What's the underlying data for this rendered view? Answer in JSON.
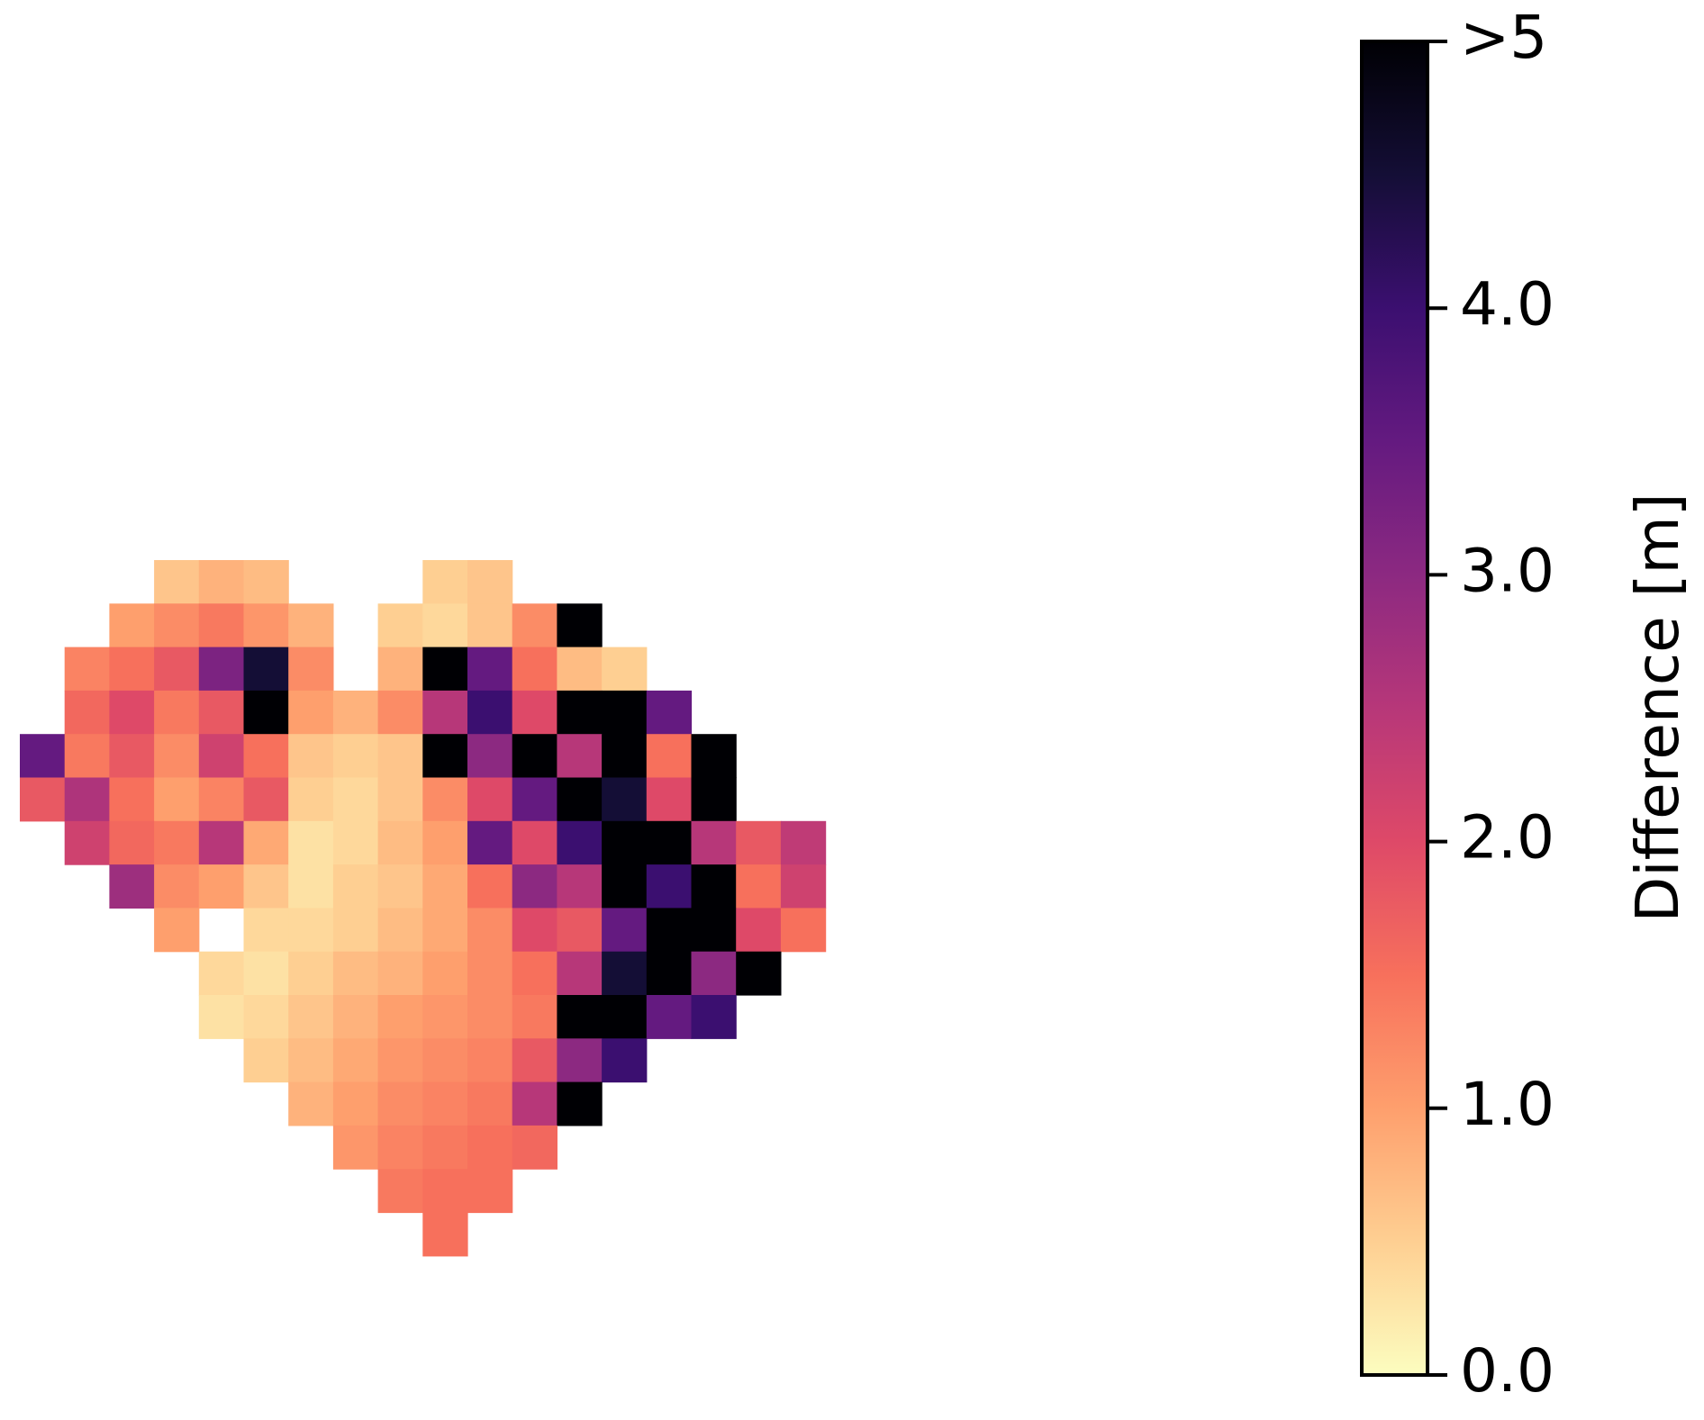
{
  "chart_data": {
    "type": "heatmap",
    "colormap": [
      "#fcfdbf",
      "#fecf92",
      "#fe9f6d",
      "#f7705c",
      "#de4968",
      "#b73779",
      "#8c2981",
      "#641a80",
      "#3b0f70",
      "#140e36",
      "#000004"
    ],
    "clim": [
      0,
      5
    ],
    "colorbar_label": "Difference [m]",
    "colorbar_ticks": [
      {
        "value": 0,
        "label": "0.0"
      },
      {
        "value": 1,
        "label": "1.0"
      },
      {
        "value": 2,
        "label": "2.0"
      },
      {
        "value": 3,
        "label": "3.0"
      },
      {
        "value": 4,
        "label": "4.0"
      },
      {
        "value": 5,
        "label": ">5"
      }
    ],
    "z": [
      [
        null,
        null,
        null,
        0.6,
        0.8,
        0.7,
        null,
        null,
        null,
        0.5,
        0.6,
        null,
        null,
        null,
        null,
        null,
        null,
        null
      ],
      [
        null,
        null,
        1.0,
        1.2,
        1.4,
        1.1,
        0.8,
        null,
        0.5,
        0.4,
        0.6,
        1.2,
        5,
        null,
        null,
        null,
        null,
        null
      ],
      [
        null,
        1.3,
        1.5,
        1.8,
        3.2,
        4.5,
        1.2,
        null,
        0.8,
        5,
        3.5,
        1.5,
        0.7,
        0.5,
        null,
        null,
        null,
        null
      ],
      [
        null,
        1.6,
        2.0,
        1.4,
        1.8,
        5,
        1.0,
        0.8,
        1.2,
        2.5,
        4.0,
        2.0,
        5,
        5,
        3.5,
        null,
        null,
        null
      ],
      [
        3.5,
        1.4,
        1.8,
        1.2,
        2.2,
        1.5,
        0.6,
        0.5,
        0.6,
        5,
        3.0,
        5,
        2.5,
        5,
        1.5,
        5,
        null,
        null
      ],
      [
        1.8,
        2.6,
        1.5,
        1.0,
        1.3,
        1.8,
        0.5,
        0.4,
        0.6,
        1.2,
        2.0,
        3.5,
        5,
        4.5,
        2.0,
        5,
        null,
        null
      ],
      [
        null,
        2.2,
        1.6,
        1.4,
        2.5,
        0.9,
        0.3,
        0.4,
        0.7,
        1.0,
        3.5,
        2.0,
        4.0,
        5,
        5,
        2.5,
        1.8,
        2.4
      ],
      [
        null,
        null,
        2.8,
        1.2,
        1.0,
        0.6,
        0.3,
        0.5,
        0.6,
        0.9,
        1.5,
        3.0,
        2.5,
        5,
        4.0,
        5,
        1.5,
        2.2
      ],
      [
        null,
        null,
        null,
        1.0,
        null,
        0.4,
        0.4,
        0.5,
        0.7,
        0.9,
        1.2,
        2.0,
        1.8,
        3.5,
        5,
        5,
        2.0,
        1.5
      ],
      [
        null,
        null,
        null,
        null,
        0.4,
        0.3,
        0.5,
        0.7,
        0.8,
        1.0,
        1.2,
        1.5,
        2.5,
        4.5,
        5,
        3.0,
        5,
        null
      ],
      [
        null,
        null,
        null,
        null,
        0.3,
        0.4,
        0.6,
        0.8,
        1.0,
        1.1,
        1.2,
        1.4,
        5,
        5,
        3.5,
        4.0,
        null,
        null
      ],
      [
        null,
        null,
        null,
        null,
        null,
        0.5,
        0.7,
        0.9,
        1.1,
        1.2,
        1.3,
        1.8,
        3.0,
        4.0,
        null,
        null,
        null,
        null
      ],
      [
        null,
        null,
        null,
        null,
        null,
        null,
        0.8,
        1.0,
        1.2,
        1.3,
        1.4,
        2.5,
        5,
        null,
        null,
        null,
        null,
        null
      ],
      [
        null,
        null,
        null,
        null,
        null,
        null,
        null,
        1.1,
        1.3,
        1.4,
        1.5,
        1.6,
        null,
        null,
        null,
        null,
        null,
        null
      ],
      [
        null,
        null,
        null,
        null,
        null,
        null,
        null,
        null,
        1.4,
        1.5,
        1.5,
        null,
        null,
        null,
        null,
        null,
        null,
        null
      ],
      [
        null,
        null,
        null,
        null,
        null,
        null,
        null,
        null,
        null,
        1.5,
        null,
        null,
        null,
        null,
        null,
        null,
        null,
        null
      ]
    ]
  }
}
